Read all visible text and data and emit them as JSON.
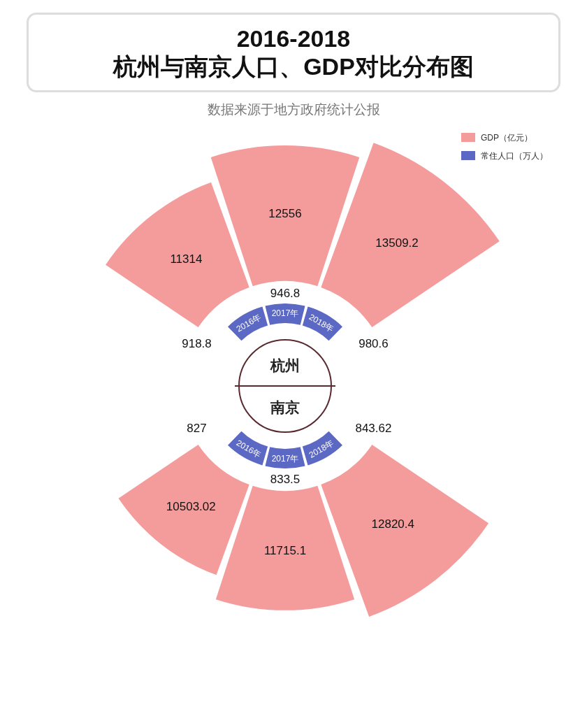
{
  "chart_data": [
    {
      "type": "other",
      "title": "2016-2018\n杭州与南京人口、GDP对比分布图",
      "subtitle": "数据来源于地方政府统计公报",
      "annotations": [
        "杭州"
      ],
      "categories": [
        "2016年",
        "2017年",
        "2018年"
      ],
      "legend": "top right",
      "data_labels": true,
      "series": [
        {
          "name": "GDP（亿元）",
          "color": "#f49c9c",
          "values": [
            11314,
            12556,
            13509.2
          ]
        },
        {
          "name": "常住人口（万人）",
          "color": "#5b68c4",
          "values": [
            918.8,
            946.8,
            980.6
          ]
        }
      ]
    },
    {
      "type": "other",
      "annotations": [
        "南京"
      ],
      "categories": [
        "2016年",
        "2017年",
        "2018年"
      ],
      "data_labels": true,
      "series": [
        {
          "color": "#f49c9c",
          "values": [
            10503.02,
            11715.1,
            12820.4
          ]
        },
        {
          "color": "#5b68c4",
          "values": [
            827,
            833.5,
            843.62
          ]
        }
      ]
    }
  ]
}
